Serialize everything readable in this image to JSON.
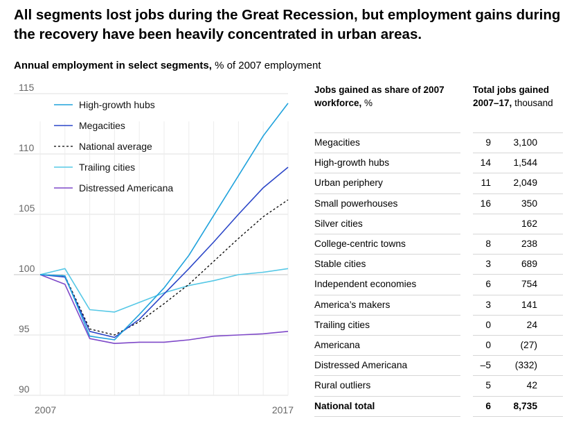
{
  "headline": "All segments lost jobs during the Great Recession, but employment gains during the recovery have been heavily concentrated in urban areas.",
  "subtitle": {
    "bold": "Annual employment in select segments,",
    "normal": " % of 2007 employment"
  },
  "chart_data": {
    "type": "line",
    "x": [
      2007,
      2008,
      2009,
      2010,
      2011,
      2012,
      2013,
      2014,
      2015,
      2016,
      2017
    ],
    "ylim": [
      90,
      115
    ],
    "yticks": [
      90,
      95,
      100,
      105,
      110,
      115
    ],
    "xtick_labels": [
      "2007",
      "2017"
    ],
    "grid": true,
    "legend_position": "top-left",
    "series": [
      {
        "name": "High-growth hubs",
        "color": "#1fa2dc",
        "dash": "solid",
        "values": [
          100,
          99.9,
          94.9,
          94.6,
          96.7,
          98.9,
          101.6,
          104.9,
          108.2,
          111.5,
          114.2
        ]
      },
      {
        "name": "Megacities",
        "color": "#2b46c8",
        "dash": "solid",
        "values": [
          100,
          99.8,
          95.3,
          94.8,
          96.3,
          98.4,
          100.5,
          102.7,
          105.0,
          107.2,
          108.9
        ]
      },
      {
        "name": "National average",
        "color": "#000000",
        "dash": "dashed",
        "values": [
          100,
          99.9,
          95.5,
          95.0,
          96.1,
          97.6,
          99.2,
          101.1,
          103.0,
          104.8,
          106.2
        ]
      },
      {
        "name": "Trailing cities",
        "color": "#56c8e6",
        "dash": "solid",
        "values": [
          100,
          100.5,
          97.1,
          96.9,
          97.7,
          98.5,
          99.1,
          99.5,
          100.0,
          100.2,
          100.5
        ]
      },
      {
        "name": "Distressed Americana",
        "color": "#7e48c8",
        "dash": "solid",
        "values": [
          100,
          99.2,
          94.7,
          94.3,
          94.4,
          94.4,
          94.6,
          94.9,
          95.0,
          95.1,
          95.3
        ]
      }
    ]
  },
  "table": {
    "share_header_bold": "Jobs gained as share of 2007 workforce,",
    "share_header_unit": " %",
    "total_header_bold": "Total jobs gained 2007–17,",
    "total_header_unit": " thousand",
    "rows": [
      {
        "segment": "Megacities",
        "share": "9",
        "total": "3,100"
      },
      {
        "segment": "High-growth hubs",
        "share": "14",
        "total": "1,544"
      },
      {
        "segment": "Urban periphery",
        "share": "11",
        "total": "2,049"
      },
      {
        "segment": "Small powerhouses",
        "share": "16",
        "total": "350"
      },
      {
        "segment": "Silver cities",
        "share": "",
        "total": "162"
      },
      {
        "segment": "College-centric towns",
        "share": "8",
        "total": "238"
      },
      {
        "segment": "Stable cities",
        "share": "3",
        "total": "689"
      },
      {
        "segment": "Independent economies",
        "share": "6",
        "total": "754"
      },
      {
        "segment": "America’s makers",
        "share": "3",
        "total": "141"
      },
      {
        "segment": "Trailing cities",
        "share": "0",
        "total": "24"
      },
      {
        "segment": "Americana",
        "share": "0",
        "total": "(27)"
      },
      {
        "segment": "Distressed Americana",
        "share": "–5",
        "total": "(332)"
      },
      {
        "segment": "Rural outliers",
        "share": "5",
        "total": "42"
      }
    ],
    "total_row": {
      "segment": "National total",
      "share": "6",
      "total": "8,735"
    }
  }
}
